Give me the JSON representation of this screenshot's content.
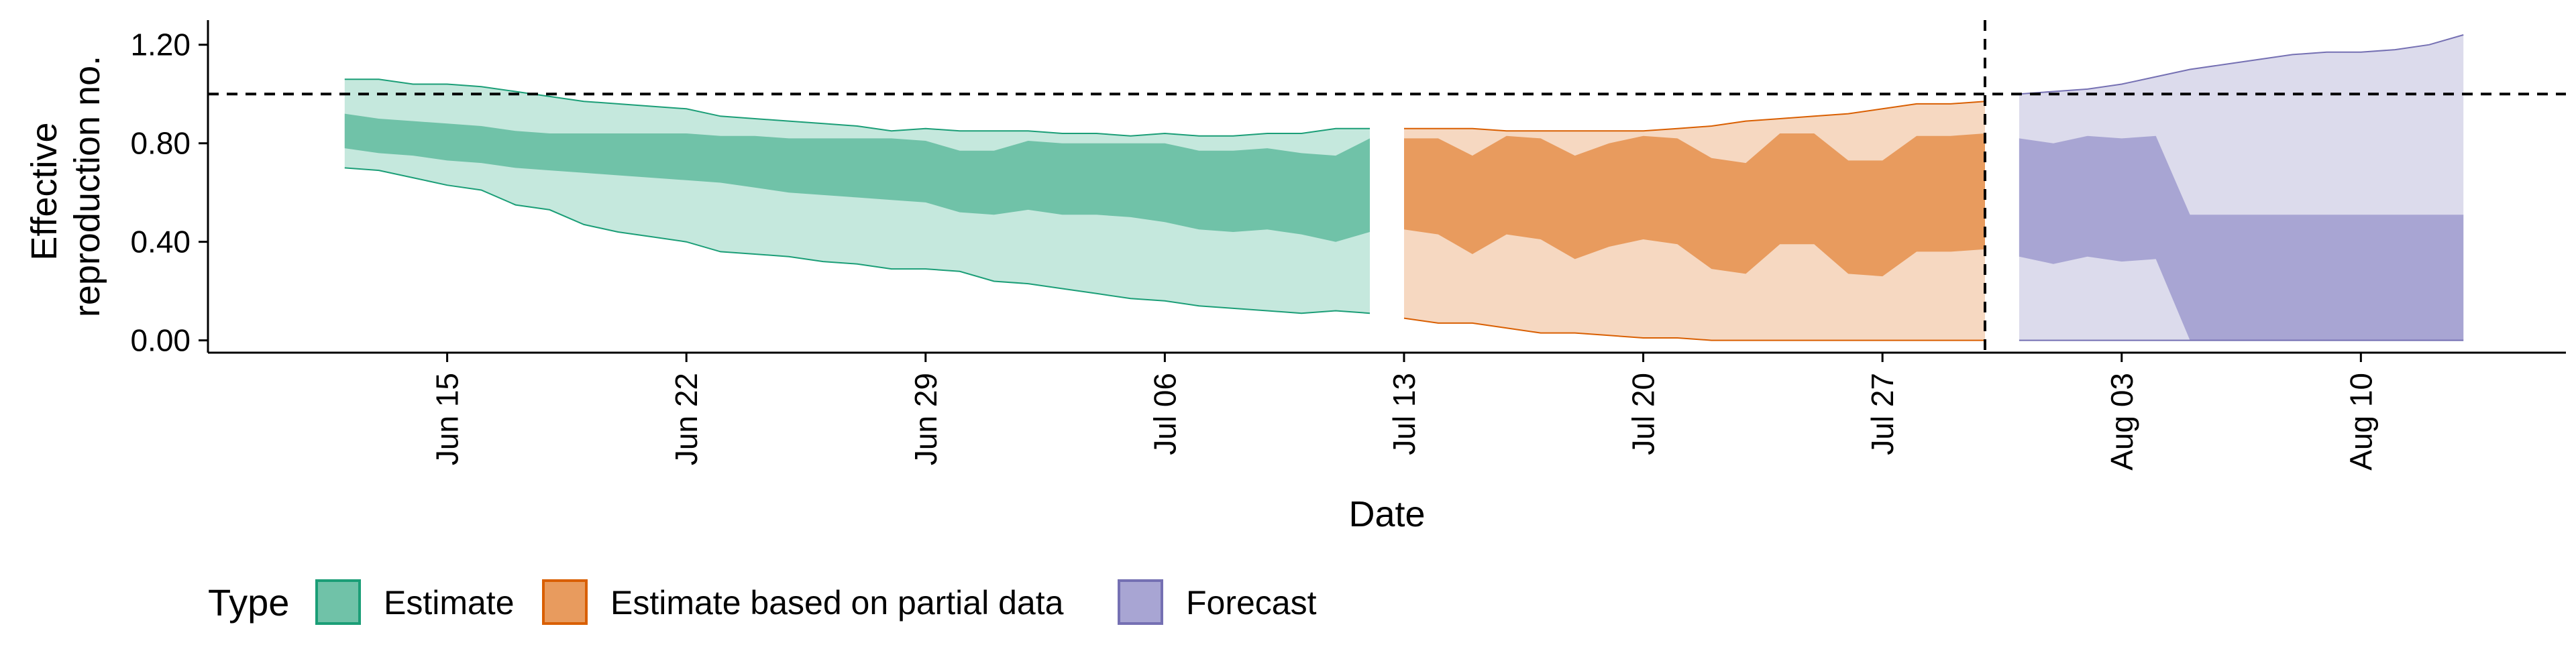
{
  "chart_data": {
    "type": "area",
    "title": "",
    "xlabel": "Date",
    "ylabel_lines": [
      "Effective",
      "reproduction no."
    ],
    "x_ticks": [
      "Jun 15",
      "Jun 22",
      "Jun 29",
      "Jul 06",
      "Jul 13",
      "Jul 20",
      "Jul 27",
      "Aug 03",
      "Aug 10"
    ],
    "x_tick_dates": [
      "2020-06-15",
      "2020-06-22",
      "2020-06-29",
      "2020-07-06",
      "2020-07-13",
      "2020-07-20",
      "2020-07-27",
      "2020-08-03",
      "2020-08-10"
    ],
    "xlim": [
      "2020-06-08",
      "2020-08-16"
    ],
    "ylim": [
      -0.05,
      1.3
    ],
    "y_ticks": [
      0.0,
      0.4,
      0.8,
      1.2
    ],
    "y_tick_labels": [
      "0.00",
      "0.40",
      "0.80",
      "1.20"
    ],
    "reference_line_y": 1.0,
    "reference_line_date": "2020-07-30",
    "grid": false,
    "legend_position": "bottom-left",
    "legend_title": "Type",
    "series": [
      {
        "name": "Estimate",
        "color": "#1b9e77",
        "fill_inner": "#70c2a8",
        "fill_outer": "#c5e8dd",
        "dates": [
          "2020-06-12",
          "2020-06-13",
          "2020-06-14",
          "2020-06-15",
          "2020-06-16",
          "2020-06-17",
          "2020-06-18",
          "2020-06-19",
          "2020-06-20",
          "2020-06-21",
          "2020-06-22",
          "2020-06-23",
          "2020-06-24",
          "2020-06-25",
          "2020-06-26",
          "2020-06-27",
          "2020-06-28",
          "2020-06-29",
          "2020-06-30",
          "2020-07-01",
          "2020-07-02",
          "2020-07-03",
          "2020-07-04",
          "2020-07-05",
          "2020-07-06",
          "2020-07-07",
          "2020-07-08",
          "2020-07-09",
          "2020-07-10",
          "2020-07-11",
          "2020-07-12"
        ],
        "outer_upper": [
          1.06,
          1.06,
          1.04,
          1.04,
          1.03,
          1.01,
          0.99,
          0.97,
          0.96,
          0.95,
          0.94,
          0.91,
          0.9,
          0.89,
          0.88,
          0.87,
          0.85,
          0.86,
          0.85,
          0.85,
          0.85,
          0.84,
          0.84,
          0.83,
          0.84,
          0.83,
          0.83,
          0.84,
          0.84,
          0.86,
          0.86
        ],
        "inner_upper": [
          0.92,
          0.9,
          0.89,
          0.88,
          0.87,
          0.85,
          0.84,
          0.84,
          0.84,
          0.84,
          0.84,
          0.83,
          0.83,
          0.82,
          0.82,
          0.82,
          0.82,
          0.81,
          0.77,
          0.77,
          0.81,
          0.8,
          0.8,
          0.8,
          0.8,
          0.77,
          0.77,
          0.78,
          0.76,
          0.75,
          0.82
        ],
        "inner_lower": [
          0.78,
          0.76,
          0.75,
          0.73,
          0.72,
          0.7,
          0.69,
          0.68,
          0.67,
          0.66,
          0.65,
          0.64,
          0.62,
          0.6,
          0.59,
          0.58,
          0.57,
          0.56,
          0.52,
          0.51,
          0.53,
          0.51,
          0.51,
          0.5,
          0.48,
          0.45,
          0.44,
          0.45,
          0.43,
          0.4,
          0.44
        ],
        "outer_lower": [
          0.7,
          0.69,
          0.66,
          0.63,
          0.61,
          0.55,
          0.53,
          0.47,
          0.44,
          0.42,
          0.4,
          0.36,
          0.35,
          0.34,
          0.32,
          0.31,
          0.29,
          0.29,
          0.28,
          0.24,
          0.23,
          0.21,
          0.19,
          0.17,
          0.16,
          0.14,
          0.13,
          0.12,
          0.11,
          0.12,
          0.11
        ]
      },
      {
        "name": "Estimate based on partial data",
        "color": "#d95f02",
        "fill_inner": "#e89b5e",
        "fill_outer": "#f6d8c1",
        "dates": [
          "2020-07-13",
          "2020-07-14",
          "2020-07-15",
          "2020-07-16",
          "2020-07-17",
          "2020-07-18",
          "2020-07-19",
          "2020-07-20",
          "2020-07-21",
          "2020-07-22",
          "2020-07-23",
          "2020-07-24",
          "2020-07-25",
          "2020-07-26",
          "2020-07-27",
          "2020-07-28",
          "2020-07-29",
          "2020-07-30"
        ],
        "outer_upper": [
          0.86,
          0.86,
          0.86,
          0.85,
          0.85,
          0.85,
          0.85,
          0.85,
          0.86,
          0.87,
          0.89,
          0.9,
          0.91,
          0.92,
          0.94,
          0.96,
          0.96,
          0.97
        ],
        "inner_upper": [
          0.82,
          0.82,
          0.75,
          0.83,
          0.82,
          0.75,
          0.8,
          0.83,
          0.82,
          0.74,
          0.72,
          0.84,
          0.84,
          0.73,
          0.73,
          0.83,
          0.83,
          0.84
        ],
        "inner_lower": [
          0.45,
          0.43,
          0.35,
          0.43,
          0.41,
          0.33,
          0.38,
          0.41,
          0.39,
          0.29,
          0.27,
          0.39,
          0.39,
          0.27,
          0.26,
          0.36,
          0.36,
          0.37
        ],
        "outer_lower": [
          0.09,
          0.07,
          0.07,
          0.05,
          0.03,
          0.03,
          0.02,
          0.01,
          0.01,
          0.0,
          0.0,
          0.0,
          0.0,
          0.0,
          0.0,
          0.0,
          0.0,
          0.0
        ]
      },
      {
        "name": "Forecast",
        "color": "#7570b3",
        "fill_inner": "#a8a5d3",
        "fill_outer": "#dcdbec",
        "dates": [
          "2020-07-31",
          "2020-08-01",
          "2020-08-02",
          "2020-08-03",
          "2020-08-04",
          "2020-08-05",
          "2020-08-06",
          "2020-08-07",
          "2020-08-08",
          "2020-08-09",
          "2020-08-10",
          "2020-08-11",
          "2020-08-12",
          "2020-08-13"
        ],
        "outer_upper": [
          1.0,
          1.01,
          1.02,
          1.04,
          1.07,
          1.1,
          1.12,
          1.14,
          1.16,
          1.17,
          1.17,
          1.18,
          1.2,
          1.24
        ],
        "inner_upper": [
          0.82,
          0.8,
          0.83,
          0.82,
          0.83,
          0.51,
          0.51,
          0.51,
          0.51,
          0.51,
          0.51,
          0.51,
          0.51,
          0.51
        ],
        "inner_lower": [
          0.34,
          0.31,
          0.34,
          0.32,
          0.33,
          0.0,
          0.0,
          0.0,
          0.0,
          0.0,
          0.0,
          0.0,
          0.0,
          0.0
        ],
        "outer_lower": [
          0.0,
          0.0,
          0.0,
          0.0,
          0.0,
          0.0,
          0.0,
          0.0,
          0.0,
          0.0,
          0.0,
          0.0,
          0.0,
          0.0
        ]
      }
    ]
  }
}
